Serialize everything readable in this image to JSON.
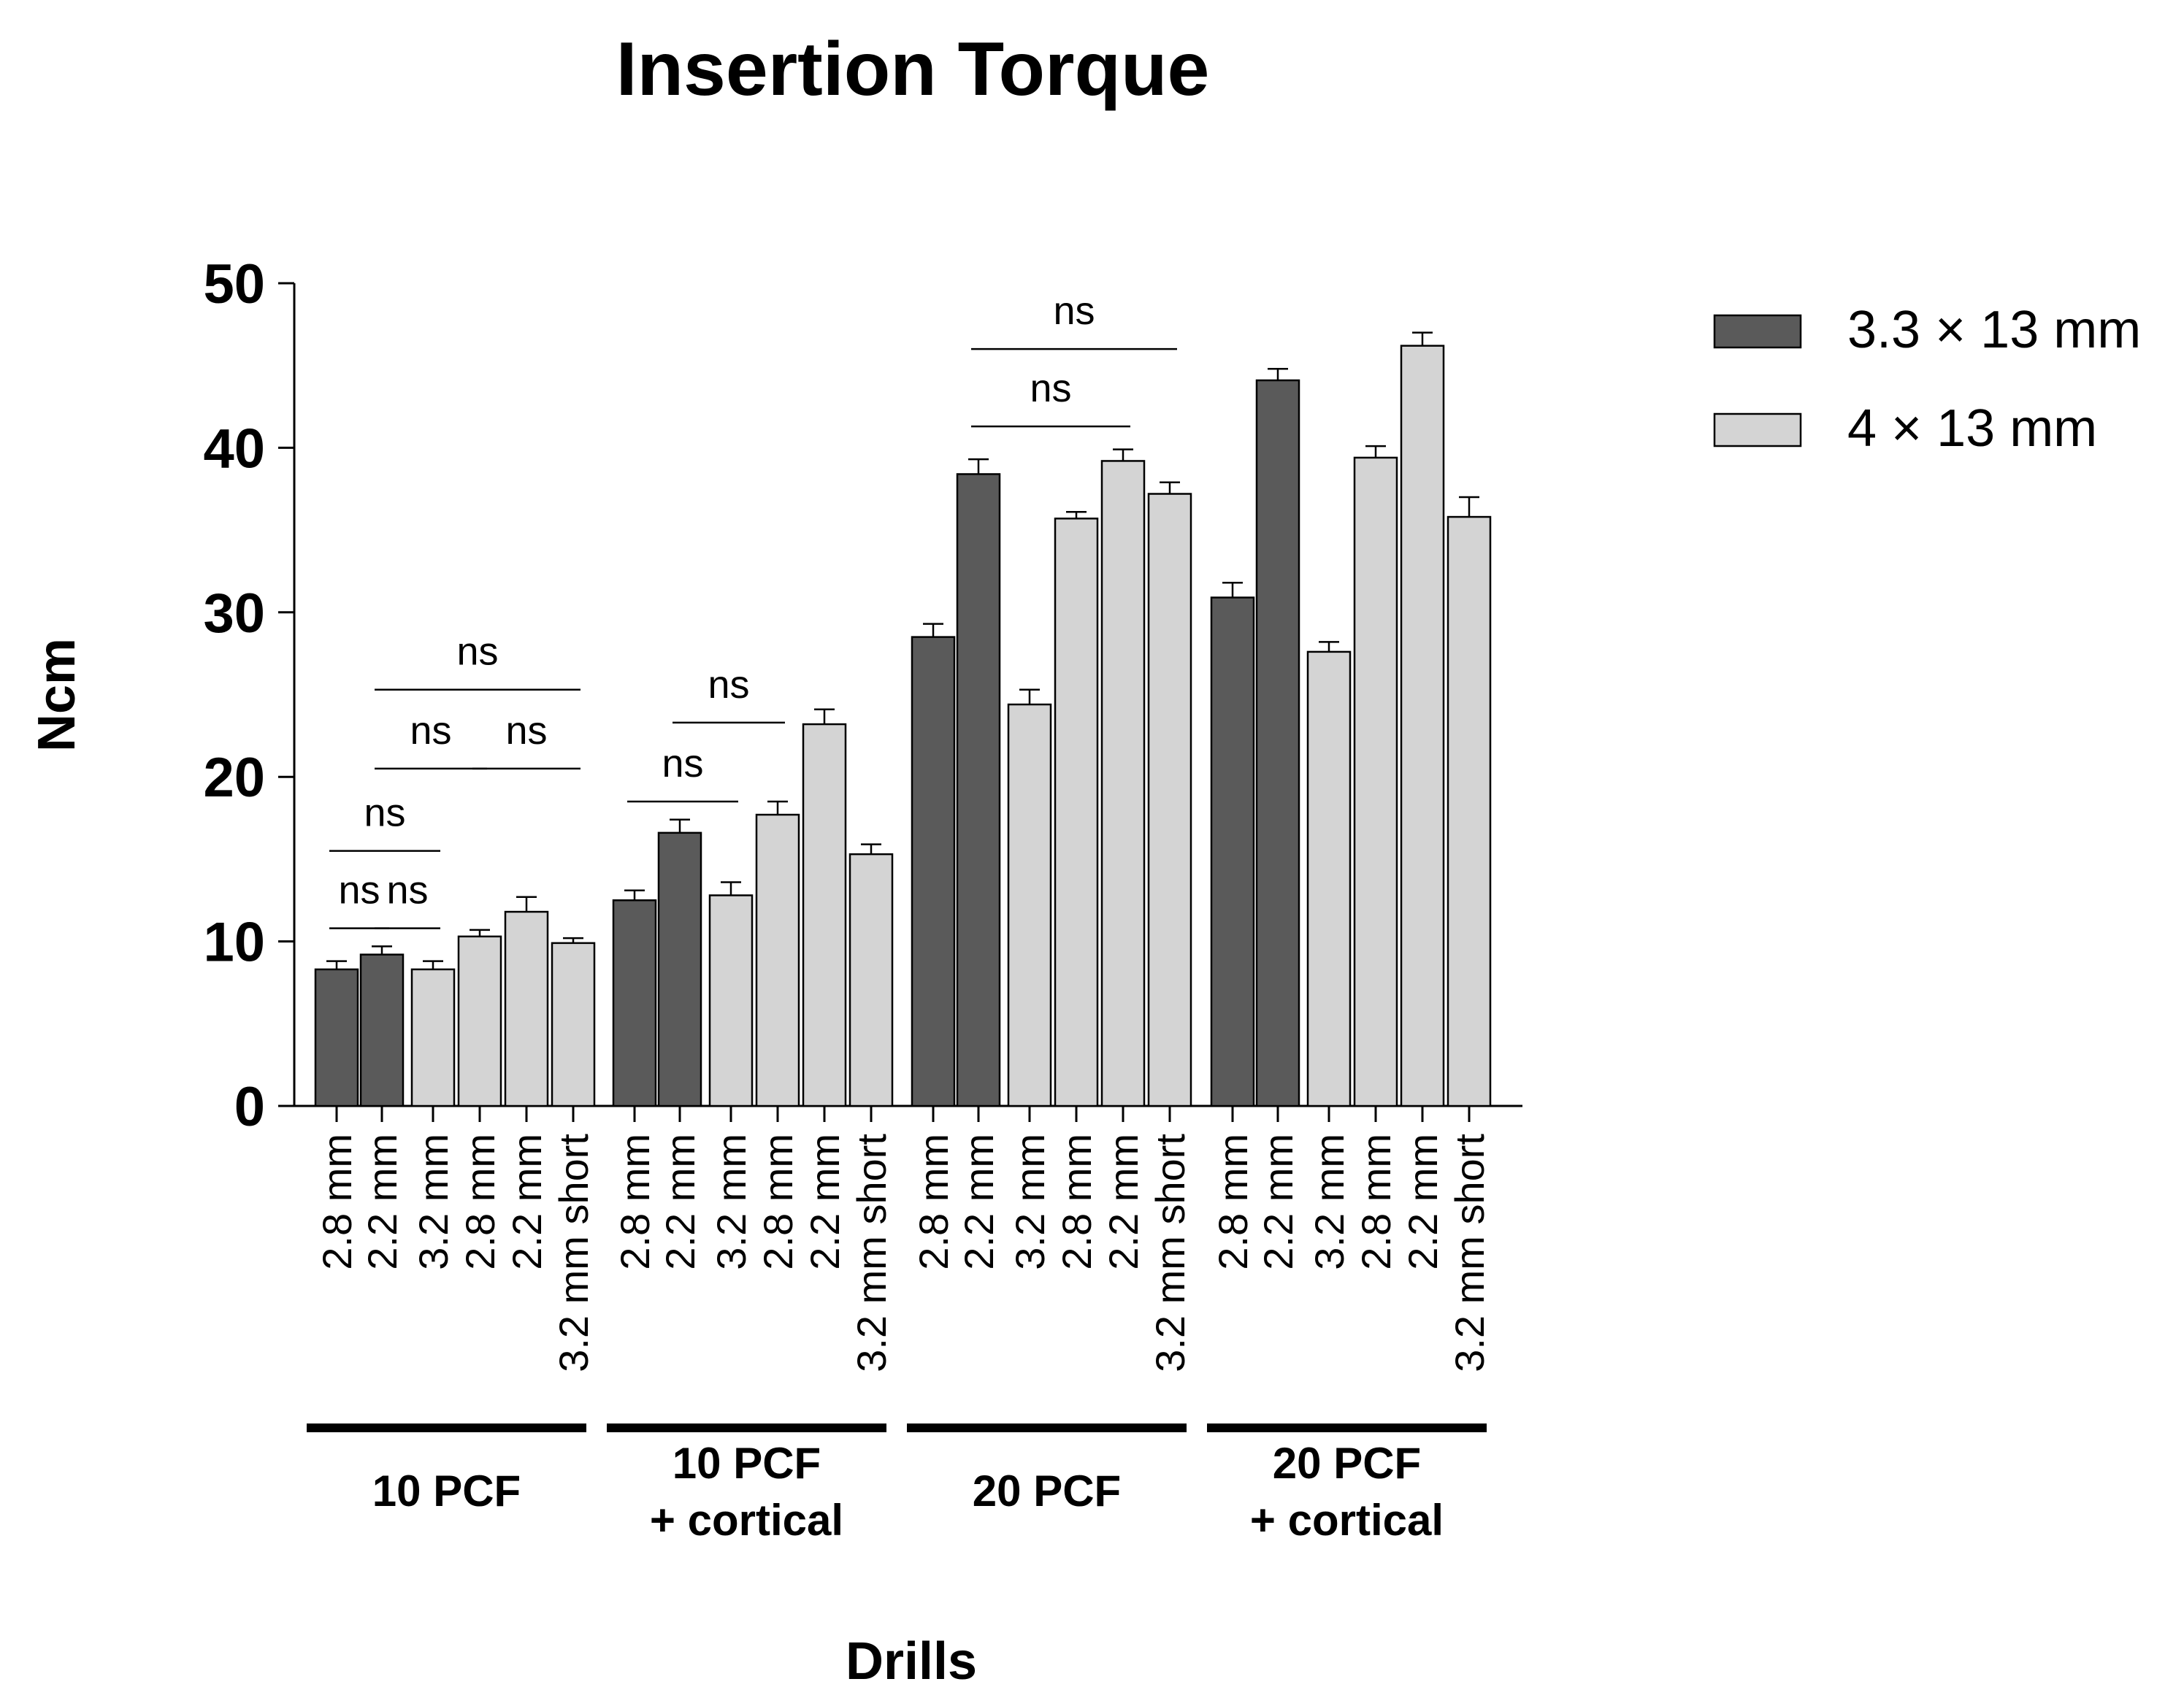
{
  "chart_data": {
    "type": "bar",
    "title": "Insertion Torque",
    "xlabel": "Drills",
    "ylabel": "Ncm",
    "ylim": [
      0,
      50
    ],
    "yticks": [
      0,
      10,
      20,
      30,
      40,
      50
    ],
    "legend": "top-right",
    "series": [
      {
        "name": "3.3 × 13 mm",
        "color": "#5a5a5a"
      },
      {
        "name": "4 × 13 mm",
        "color": "#d4d4d4"
      }
    ],
    "groups": [
      {
        "label_lines": [
          "10 PCF"
        ],
        "bars": [
          {
            "label": "2.8 mm",
            "series": 0,
            "value": 8.3,
            "error": 0.5
          },
          {
            "label": "2.2 mm",
            "series": 0,
            "value": 9.2,
            "error": 0.5
          },
          {
            "label": "3.2 mm",
            "series": 1,
            "value": 8.3,
            "error": 0.5
          },
          {
            "label": "2.8 mm",
            "series": 1,
            "value": 10.3,
            "error": 0.4
          },
          {
            "label": "2.2 mm",
            "series": 1,
            "value": 11.8,
            "error": 0.9
          },
          {
            "label": "3.2 mm short",
            "series": 1,
            "value": 9.9,
            "error": 0.3
          }
        ],
        "brackets": [
          {
            "from": 0,
            "to": 1,
            "y": 10.8,
            "text": "ns"
          },
          {
            "from": 1,
            "to": 2,
            "y": 10.8,
            "text": "ns"
          },
          {
            "from": 0,
            "to": 2,
            "y": 15.5,
            "text": "ns"
          },
          {
            "from": 1,
            "to": 3,
            "y": 20.5,
            "text": "ns"
          },
          {
            "from": 3,
            "to": 5,
            "y": 20.5,
            "text": "ns"
          },
          {
            "from": 1,
            "to": 5,
            "y": 25.3,
            "text": "ns"
          }
        ]
      },
      {
        "label_lines": [
          "10 PCF",
          "+ cortical"
        ],
        "bars": [
          {
            "label": "2.8 mm",
            "series": 0,
            "value": 12.5,
            "error": 0.6
          },
          {
            "label": "2.2 mm",
            "series": 0,
            "value": 16.6,
            "error": 0.8
          },
          {
            "label": "3.2 mm",
            "series": 1,
            "value": 12.8,
            "error": 0.8
          },
          {
            "label": "2.8 mm",
            "series": 1,
            "value": 17.7,
            "error": 0.8
          },
          {
            "label": "2.2 mm",
            "series": 1,
            "value": 23.2,
            "error": 0.9
          },
          {
            "label": "3.2 mm short",
            "series": 1,
            "value": 15.3,
            "error": 0.6
          }
        ],
        "brackets": [
          {
            "from": 0,
            "to": 2,
            "y": 18.5,
            "text": "ns"
          },
          {
            "from": 1,
            "to": 3,
            "y": 23.3,
            "text": "ns"
          }
        ]
      },
      {
        "label_lines": [
          "20 PCF"
        ],
        "bars": [
          {
            "label": "2.8 mm",
            "series": 0,
            "value": 28.5,
            "error": 0.8
          },
          {
            "label": "2.2 mm",
            "series": 0,
            "value": 38.4,
            "error": 0.9
          },
          {
            "label": "3.2 mm",
            "series": 1,
            "value": 24.4,
            "error": 0.9
          },
          {
            "label": "2.8 mm",
            "series": 1,
            "value": 35.7,
            "error": 0.4
          },
          {
            "label": "2.2 mm",
            "series": 1,
            "value": 39.2,
            "error": 0.7
          },
          {
            "label": "3.2 mm short",
            "series": 1,
            "value": 37.2,
            "error": 0.7
          }
        ],
        "brackets": [
          {
            "from": 1,
            "to": 4,
            "y": 41.3,
            "text": "ns"
          },
          {
            "from": 1,
            "to": 5,
            "y": 46.0,
            "text": "ns"
          }
        ]
      },
      {
        "label_lines": [
          "20 PCF",
          "+ cortical"
        ],
        "bars": [
          {
            "label": "2.8 mm",
            "series": 0,
            "value": 30.9,
            "error": 0.9
          },
          {
            "label": "2.2 mm",
            "series": 0,
            "value": 44.1,
            "error": 0.7
          },
          {
            "label": "3.2 mm",
            "series": 1,
            "value": 27.6,
            "error": 0.6
          },
          {
            "label": "2.8 mm",
            "series": 1,
            "value": 39.4,
            "error": 0.7
          },
          {
            "label": "2.2 mm",
            "series": 1,
            "value": 46.2,
            "error": 0.8
          },
          {
            "label": "3.2 mm short",
            "series": 1,
            "value": 35.8,
            "error": 1.2
          }
        ],
        "brackets": []
      }
    ]
  }
}
